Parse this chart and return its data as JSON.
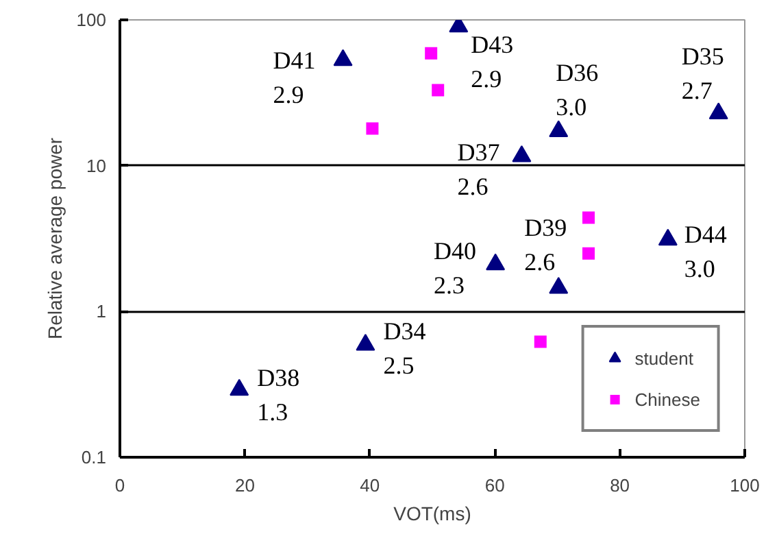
{
  "chart_data": {
    "type": "scatter",
    "xlabel": "VOT(ms)",
    "ylabel": "Relative average power",
    "log": "y",
    "grid": "y",
    "legend": "bottom right",
    "xlim": [
      0,
      100
    ],
    "xticks": [
      0,
      20,
      40,
      60,
      80,
      100
    ],
    "ylim": [
      0.1,
      100
    ],
    "yticks": [
      0.1,
      1,
      10,
      100
    ],
    "series": [
      {
        "name": "student",
        "color": "#000080",
        "marker": "triangle",
        "x": [
          35.7,
          54.2,
          70.2,
          95.8,
          64.3,
          87.7,
          60.1,
          70.2,
          39.3,
          19.1
        ],
        "values": [
          53,
          90,
          17.2,
          22.8,
          11.6,
          3.1,
          2.1,
          1.45,
          0.59,
          0.29
        ]
      },
      {
        "name": "Chinese",
        "color": "#ff00ff",
        "marker": "square",
        "x": [
          49.8,
          50.9,
          40.4,
          75,
          75,
          67.3
        ],
        "values": [
          59,
          33,
          18,
          4.4,
          2.5,
          0.62
        ]
      }
    ],
    "annotations": [
      {
        "text": "D41\n2.9",
        "x": 35.7,
        "y": 53
      },
      {
        "text": "D43\n2.9",
        "x": 54.2,
        "y": 90
      },
      {
        "text": "D36\n3.0",
        "x": 70.2,
        "y": 17.2
      },
      {
        "text": "D35\n2.7",
        "x": 95.8,
        "y": 22.8
      },
      {
        "text": "D37\n2.6",
        "x": 64.3,
        "y": 11.6
      },
      {
        "text": "D44\n3.0",
        "x": 87.7,
        "y": 3.1
      },
      {
        "text": "D40\n2.3",
        "x": 60.1,
        "y": 2.1
      },
      {
        "text": "D39\n2.6",
        "x": 70.2,
        "y": 1.45
      },
      {
        "text": "D34\n2.5",
        "x": 39.3,
        "y": 0.59
      },
      {
        "text": "D38\n1.3",
        "x": 19.1,
        "y": 0.29
      }
    ]
  }
}
